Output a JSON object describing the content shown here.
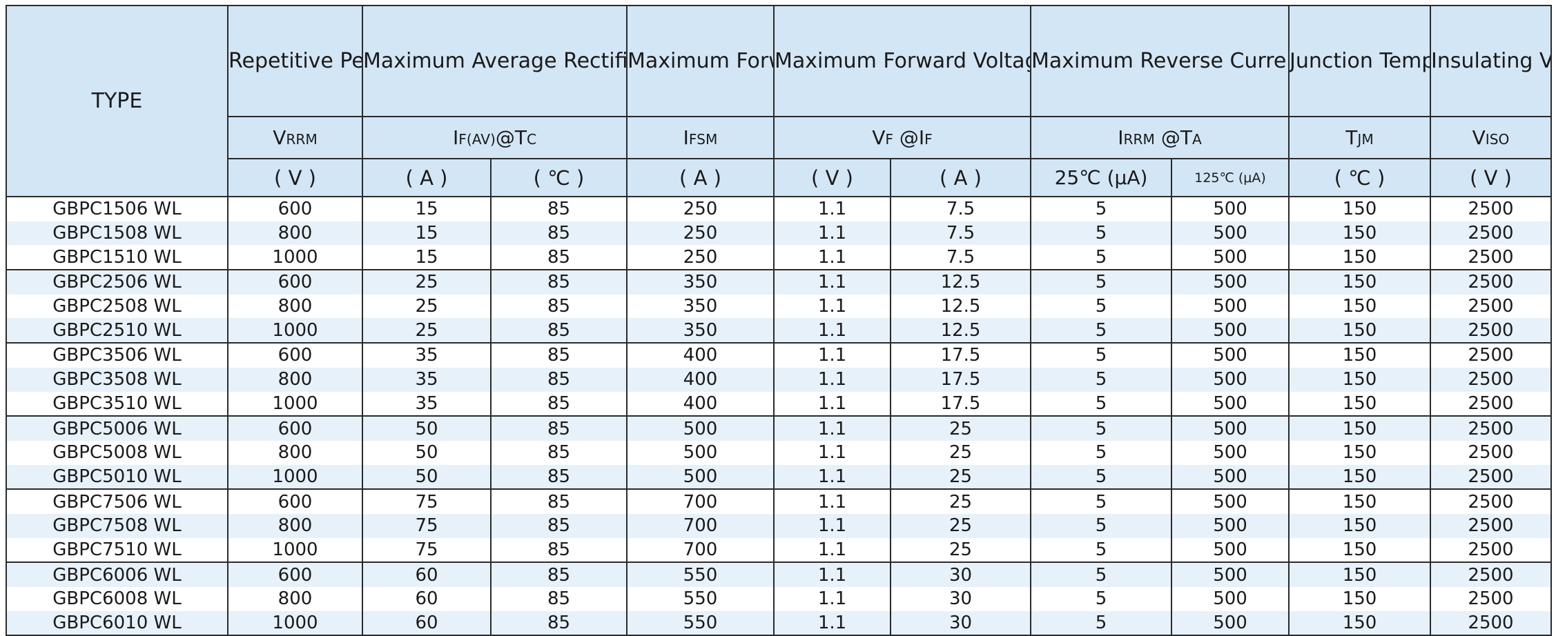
{
  "header": {
    "type_label": "TYPE",
    "vrrm_title": "Repetitive Peak Reverse Voltage",
    "ifav_title": "Maximum Average Rectified Current",
    "ifsm_title": "Maximum Forward Peak Surge Current",
    "vf_title": "Maximum Forward Voltage",
    "irrm_title": "Maximum Reverse Current",
    "tjm_title": "Junction Tempera ture",
    "viso_title": "Insulating Voltage",
    "vrrm_sym_main": "V",
    "vrrm_sym_sub": "RRM",
    "ifav_sym_main": "I",
    "ifav_sym_sub": "F(AV)",
    "ifav_sym_tail": "@T",
    "ifav_sym_tail_sub": "C",
    "ifsm_sym_main": "I",
    "ifsm_sym_sub": "FSM",
    "vf_sym_main": "V",
    "vf_sym_sub": "F",
    "vf_sym_tail": " @I",
    "vf_sym_tail_sub": "F",
    "irrm_sym_main": "I",
    "irrm_sym_sub": "RRM",
    "irrm_sym_tail": " @T",
    "irrm_sym_tail_sub": "A",
    "tjm_sym_main": "T",
    "tjm_sym_sub": "JM",
    "viso_sym_main": "V",
    "viso_sym_sub": "ISO",
    "units": {
      "vrrm": "( V )",
      "ifav_a": "( A )",
      "ifav_c": "( ℃ )",
      "ifsm": "( A )",
      "vf_v": "( V )",
      "vf_a": "( A )",
      "ir_25": "25℃ (μA)",
      "ir_125": "125℃ (μA)",
      "tjm": "( ℃ )",
      "viso": "( V )"
    }
  },
  "rows": [
    {
      "type": "GBPC1506 WL",
      "vrrm": "600",
      "ifav": "15",
      "tc": "85",
      "ifsm": "250",
      "vf": "1.1",
      "if": "7.5",
      "ir25": "5",
      "ir125": "500",
      "tjm": "150",
      "viso": "2500"
    },
    {
      "type": "GBPC1508 WL",
      "vrrm": "800",
      "ifav": "15",
      "tc": "85",
      "ifsm": "250",
      "vf": "1.1",
      "if": "7.5",
      "ir25": "5",
      "ir125": "500",
      "tjm": "150",
      "viso": "2500"
    },
    {
      "type": "GBPC1510 WL",
      "vrrm": "1000",
      "ifav": "15",
      "tc": "85",
      "ifsm": "250",
      "vf": "1.1",
      "if": "7.5",
      "ir25": "5",
      "ir125": "500",
      "tjm": "150",
      "viso": "2500"
    },
    {
      "type": "GBPC2506 WL",
      "vrrm": "600",
      "ifav": "25",
      "tc": "85",
      "ifsm": "350",
      "vf": "1.1",
      "if": "12.5",
      "ir25": "5",
      "ir125": "500",
      "tjm": "150",
      "viso": "2500"
    },
    {
      "type": "GBPC2508 WL",
      "vrrm": "800",
      "ifav": "25",
      "tc": "85",
      "ifsm": "350",
      "vf": "1.1",
      "if": "12.5",
      "ir25": "5",
      "ir125": "500",
      "tjm": "150",
      "viso": "2500"
    },
    {
      "type": "GBPC2510 WL",
      "vrrm": "1000",
      "ifav": "25",
      "tc": "85",
      "ifsm": "350",
      "vf": "1.1",
      "if": "12.5",
      "ir25": "5",
      "ir125": "500",
      "tjm": "150",
      "viso": "2500"
    },
    {
      "type": "GBPC3506 WL",
      "vrrm": "600",
      "ifav": "35",
      "tc": "85",
      "ifsm": "400",
      "vf": "1.1",
      "if": "17.5",
      "ir25": "5",
      "ir125": "500",
      "tjm": "150",
      "viso": "2500"
    },
    {
      "type": "GBPC3508 WL",
      "vrrm": "800",
      "ifav": "35",
      "tc": "85",
      "ifsm": "400",
      "vf": "1.1",
      "if": "17.5",
      "ir25": "5",
      "ir125": "500",
      "tjm": "150",
      "viso": "2500"
    },
    {
      "type": "GBPC3510 WL",
      "vrrm": "1000",
      "ifav": "35",
      "tc": "85",
      "ifsm": "400",
      "vf": "1.1",
      "if": "17.5",
      "ir25": "5",
      "ir125": "500",
      "tjm": "150",
      "viso": "2500"
    },
    {
      "type": "GBPC5006 WL",
      "vrrm": "600",
      "ifav": "50",
      "tc": "85",
      "ifsm": "500",
      "vf": "1.1",
      "if": "25",
      "ir25": "5",
      "ir125": "500",
      "tjm": "150",
      "viso": "2500"
    },
    {
      "type": "GBPC5008 WL",
      "vrrm": "800",
      "ifav": "50",
      "tc": "85",
      "ifsm": "500",
      "vf": "1.1",
      "if": "25",
      "ir25": "5",
      "ir125": "500",
      "tjm": "150",
      "viso": "2500"
    },
    {
      "type": "GBPC5010 WL",
      "vrrm": "1000",
      "ifav": "50",
      "tc": "85",
      "ifsm": "500",
      "vf": "1.1",
      "if": "25",
      "ir25": "5",
      "ir125": "500",
      "tjm": "150",
      "viso": "2500"
    },
    {
      "type": "GBPC7506 WL",
      "vrrm": "600",
      "ifav": "75",
      "tc": "85",
      "ifsm": "700",
      "vf": "1.1",
      "if": "25",
      "ir25": "5",
      "ir125": "500",
      "tjm": "150",
      "viso": "2500"
    },
    {
      "type": "GBPC7508 WL",
      "vrrm": "800",
      "ifav": "75",
      "tc": "85",
      "ifsm": "700",
      "vf": "1.1",
      "if": "25",
      "ir25": "5",
      "ir125": "500",
      "tjm": "150",
      "viso": "2500"
    },
    {
      "type": "GBPC7510 WL",
      "vrrm": "1000",
      "ifav": "75",
      "tc": "85",
      "ifsm": "700",
      "vf": "1.1",
      "if": "25",
      "ir25": "5",
      "ir125": "500",
      "tjm": "150",
      "viso": "2500"
    },
    {
      "type": "GBPC6006 WL",
      "vrrm": "600",
      "ifav": "60",
      "tc": "85",
      "ifsm": "550",
      "vf": "1.1",
      "if": "30",
      "ir25": "5",
      "ir125": "500",
      "tjm": "150",
      "viso": "2500"
    },
    {
      "type": "GBPC6008 WL",
      "vrrm": "800",
      "ifav": "60",
      "tc": "85",
      "ifsm": "550",
      "vf": "1.1",
      "if": "30",
      "ir25": "5",
      "ir125": "500",
      "tjm": "150",
      "viso": "2500"
    },
    {
      "type": "GBPC6010 WL",
      "vrrm": "1000",
      "ifav": "60",
      "tc": "85",
      "ifsm": "550",
      "vf": "1.1",
      "if": "30",
      "ir25": "5",
      "ir125": "500",
      "tjm": "150",
      "viso": "2500"
    }
  ],
  "colors": {
    "header_bg": "#d3e6f5",
    "stripe_bg": "#e7f1f9",
    "border": "#2a2a2a"
  }
}
